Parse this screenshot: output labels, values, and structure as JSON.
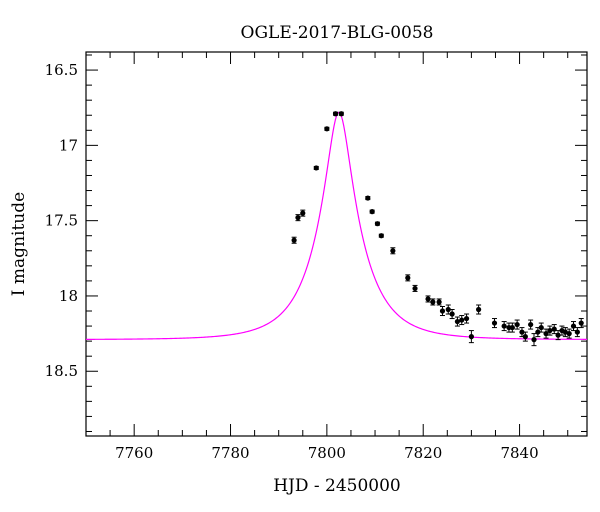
{
  "chart_data": {
    "type": "scatter",
    "title": "OGLE-2017-BLG-0058",
    "xlabel": "HJD - 2450000",
    "ylabel": "I magnitude",
    "xlim": [
      7750,
      7854
    ],
    "ylim": [
      18.93,
      16.38
    ],
    "y_inverted": true,
    "x_ticks": [
      7760,
      7780,
      7800,
      7820,
      7840
    ],
    "y_ticks": [
      16.5,
      17,
      17.5,
      18,
      18.5
    ],
    "x_tick_labels": [
      "7760",
      "7780",
      "7800",
      "7820",
      "7840"
    ],
    "y_tick_labels": [
      "16.5",
      "17",
      "17.5",
      "18",
      "18.5"
    ],
    "grid": false,
    "series": [
      {
        "kind": "points",
        "color": "#000000",
        "x": [
          7793.2,
          7794.0,
          7795.0,
          7797.8,
          7800.0,
          7801.8,
          7803.0,
          7808.5,
          7809.4,
          7810.5,
          7811.3,
          7813.7,
          7816.8,
          7818.3,
          7821.0,
          7822.0,
          7823.3,
          7824.0,
          7825.2,
          7826.0,
          7827.1,
          7828.0,
          7829.0,
          7830.0,
          7831.5,
          7834.8,
          7836.8,
          7837.8,
          7838.5,
          7839.5,
          7840.5,
          7841.2,
          7842.3,
          7843.0,
          7843.8,
          7844.5,
          7845.5,
          7846.3,
          7847.2,
          7848.0,
          7848.8,
          7849.5,
          7850.3,
          7851.2,
          7852.0,
          7852.8
        ],
        "y": [
          17.63,
          17.48,
          17.45,
          17.15,
          16.89,
          16.79,
          16.79,
          17.35,
          17.44,
          17.52,
          17.6,
          17.7,
          17.88,
          17.95,
          18.02,
          18.04,
          18.04,
          18.1,
          18.09,
          18.12,
          18.17,
          18.16,
          18.15,
          18.27,
          18.09,
          18.18,
          18.2,
          18.21,
          18.21,
          18.19,
          18.24,
          18.27,
          18.19,
          18.29,
          18.24,
          18.21,
          18.25,
          18.23,
          18.22,
          18.26,
          18.23,
          18.24,
          18.25,
          18.2,
          18.24,
          18.18
        ],
        "err": [
          0.02,
          0.02,
          0.02,
          0.01,
          0.01,
          0.01,
          0.01,
          0.01,
          0.01,
          0.01,
          0.01,
          0.02,
          0.02,
          0.02,
          0.02,
          0.02,
          0.02,
          0.03,
          0.03,
          0.03,
          0.03,
          0.03,
          0.03,
          0.04,
          0.03,
          0.03,
          0.03,
          0.03,
          0.03,
          0.03,
          0.03,
          0.03,
          0.03,
          0.04,
          0.03,
          0.03,
          0.03,
          0.03,
          0.03,
          0.03,
          0.03,
          0.03,
          0.03,
          0.03,
          0.03,
          0.03
        ]
      },
      {
        "kind": "model",
        "color": "#ff00ff",
        "baseline": 18.29,
        "peak_mag": 16.78,
        "t0": 7802.5,
        "tE": 9.0
      }
    ]
  }
}
